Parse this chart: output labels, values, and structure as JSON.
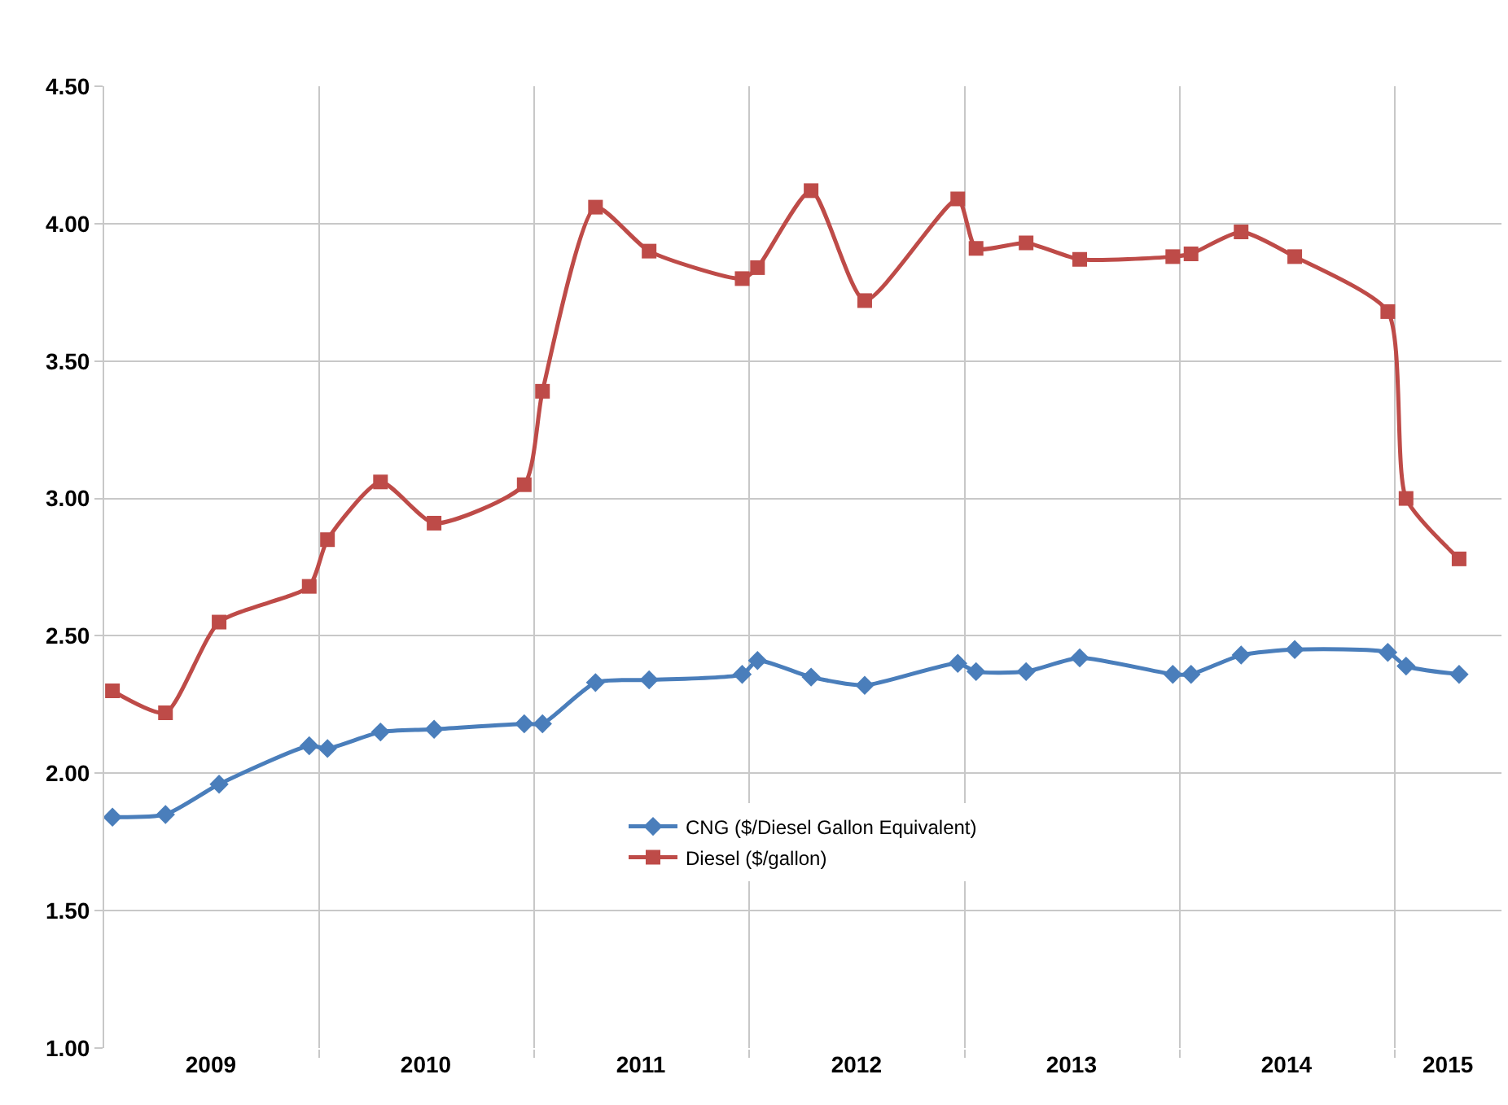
{
  "chart_data": {
    "type": "line",
    "x": [
      "2009-01-15",
      "2009-04-15",
      "2009-07-15",
      "2009-12-15",
      "2010-01-15",
      "2010-04-15",
      "2010-07-15",
      "2010-12-15",
      "2011-01-15",
      "2011-04-15",
      "2011-07-15",
      "2011-12-20",
      "2012-01-15",
      "2012-04-15",
      "2012-07-15",
      "2012-12-20",
      "2013-01-20",
      "2013-04-15",
      "2013-07-15",
      "2013-12-20",
      "2014-01-20",
      "2014-04-15",
      "2014-07-15",
      "2014-12-20",
      "2015-01-20",
      "2015-04-20"
    ],
    "series": [
      {
        "name": "CNG ($/Diesel Gallon Equivalent)",
        "color": "#4a7ebb",
        "marker": "diamond",
        "values": [
          1.84,
          1.85,
          1.96,
          2.1,
          2.09,
          2.15,
          2.16,
          2.18,
          2.18,
          2.33,
          2.34,
          2.36,
          2.41,
          2.35,
          2.32,
          2.4,
          2.37,
          2.37,
          2.42,
          2.36,
          2.36,
          2.43,
          2.45,
          2.44,
          2.39,
          2.36
        ]
      },
      {
        "name": "Diesel ($/gallon)",
        "color": "#be4b48",
        "marker": "square",
        "values": [
          2.3,
          2.22,
          2.55,
          2.68,
          2.85,
          3.06,
          2.91,
          3.05,
          3.39,
          4.06,
          3.9,
          3.8,
          3.84,
          4.12,
          3.72,
          4.09,
          3.91,
          3.93,
          3.87,
          3.88,
          3.89,
          3.97,
          3.88,
          3.68,
          3.0,
          2.78
        ]
      }
    ],
    "xlim": [
      "2009-01-01",
      "2015-07-01"
    ],
    "xticks": [
      {
        "value": "2009-07-01",
        "label": "2009"
      },
      {
        "value": "2010-01-01",
        "label": null
      },
      {
        "value": "2010-07-01",
        "label": "2010"
      },
      {
        "value": "2011-01-01",
        "label": null
      },
      {
        "value": "2011-07-01",
        "label": "2011"
      },
      {
        "value": "2012-01-01",
        "label": null
      },
      {
        "value": "2012-07-01",
        "label": "2012"
      },
      {
        "value": "2013-01-01",
        "label": null
      },
      {
        "value": "2013-07-01",
        "label": "2013"
      },
      {
        "value": "2014-01-01",
        "label": null
      },
      {
        "value": "2014-07-01",
        "label": "2014"
      },
      {
        "value": "2015-01-01",
        "label": null
      },
      {
        "value": "2015-04-01",
        "label": "2015"
      }
    ],
    "ylim": [
      1.0,
      4.5
    ],
    "yticks": [
      {
        "value": 1.0,
        "label": "1.00"
      },
      {
        "value": 1.5,
        "label": "1.50"
      },
      {
        "value": 2.0,
        "label": "2.00"
      },
      {
        "value": 2.5,
        "label": "2.50"
      },
      {
        "value": 3.0,
        "label": "3.00"
      },
      {
        "value": 3.5,
        "label": "3.50"
      },
      {
        "value": 4.0,
        "label": "4.00"
      },
      {
        "value": 4.5,
        "label": "4.50"
      }
    ],
    "grid": true,
    "legend": "bottom",
    "line_style": "solid"
  }
}
